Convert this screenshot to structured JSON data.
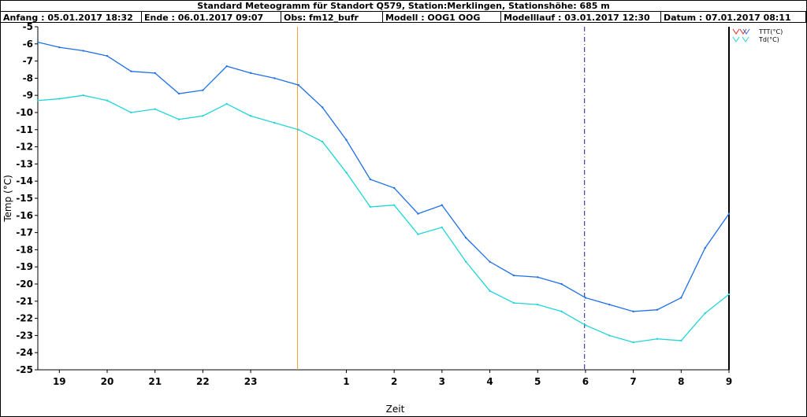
{
  "header": {
    "title": "Standard Meteogramm für Standort Q579, Station:Merklingen, Stationshöhe: 685 m",
    "info": [
      "Anfang : 05.01.2017 18:32",
      "Ende : 06.01.2017 09:07",
      "Obs: fm12_bufr",
      "Modell : OOG1 OOG",
      "Modelllauf : 03.01.2017 12:30",
      "Datum : 07.01.2017 08:11"
    ]
  },
  "colors": {
    "ttt": "#1f6fe8",
    "td": "#20d4d8",
    "legend_red": "#e8251f",
    "obs_end_line": "#f0a030",
    "model_run_line": "#1a1aa0"
  },
  "chart_data": {
    "type": "line",
    "xlabel": "Zeit",
    "ylabel": "Temp (°C)",
    "ylim": [
      -25,
      -5
    ],
    "xlim": [
      18.55,
      33.0
    ],
    "x_tick_labels": [
      "19",
      "20",
      "21",
      "22",
      "23",
      "1",
      "2",
      "3",
      "4",
      "5",
      "6",
      "7",
      "8",
      "9"
    ],
    "x_tick_hours": [
      19,
      20,
      21,
      22,
      23,
      25,
      26,
      27,
      28,
      29,
      30,
      31,
      32,
      33
    ],
    "y_ticks": [
      -5,
      -6,
      -7,
      -8,
      -9,
      -10,
      -11,
      -12,
      -13,
      -14,
      -15,
      -16,
      -17,
      -18,
      -19,
      -20,
      -21,
      -22,
      -23,
      -24,
      -25
    ],
    "grid": false,
    "legend_position": "top-right",
    "vertical_markers": [
      {
        "x": 23.98,
        "style": "solid",
        "color_key": "obs_end_line"
      },
      {
        "x": 29.98,
        "style": "dashdot",
        "color_key": "model_run_line"
      }
    ],
    "x": [
      18.55,
      19.0,
      19.5,
      20.0,
      20.5,
      21.0,
      21.5,
      22.0,
      22.5,
      23.0,
      23.5,
      24.0,
      24.5,
      25.0,
      25.5,
      26.0,
      26.5,
      27.0,
      27.5,
      28.0,
      28.5,
      29.0,
      29.5,
      30.0,
      30.5,
      31.0,
      31.5,
      32.0,
      32.5,
      33.0
    ],
    "series": [
      {
        "name": "TTT(°C)",
        "color_key": "ttt",
        "values": [
          -5.9,
          -6.2,
          -6.4,
          -6.7,
          -7.6,
          -7.7,
          -8.9,
          -8.7,
          -7.3,
          -7.7,
          -8.0,
          -8.4,
          -9.7,
          -11.6,
          -13.9,
          -14.4,
          -15.9,
          -15.4,
          -17.3,
          -18.7,
          -19.5,
          -19.6,
          -20.0,
          -20.8,
          -21.2,
          -21.6,
          -21.5,
          -20.8,
          -17.9,
          -15.9
        ]
      },
      {
        "name": "Td(°C)",
        "color_key": "td",
        "values": [
          -9.3,
          -9.2,
          -9.0,
          -9.3,
          -10.0,
          -9.8,
          -10.4,
          -10.2,
          -9.5,
          -10.2,
          -10.6,
          -11.0,
          -11.7,
          -13.5,
          -15.5,
          -15.4,
          -17.1,
          -16.7,
          -18.7,
          -20.4,
          -21.1,
          -21.2,
          -21.6,
          -22.4,
          -23.0,
          -23.4,
          -23.2,
          -23.3,
          -21.7,
          -20.6
        ]
      }
    ]
  }
}
